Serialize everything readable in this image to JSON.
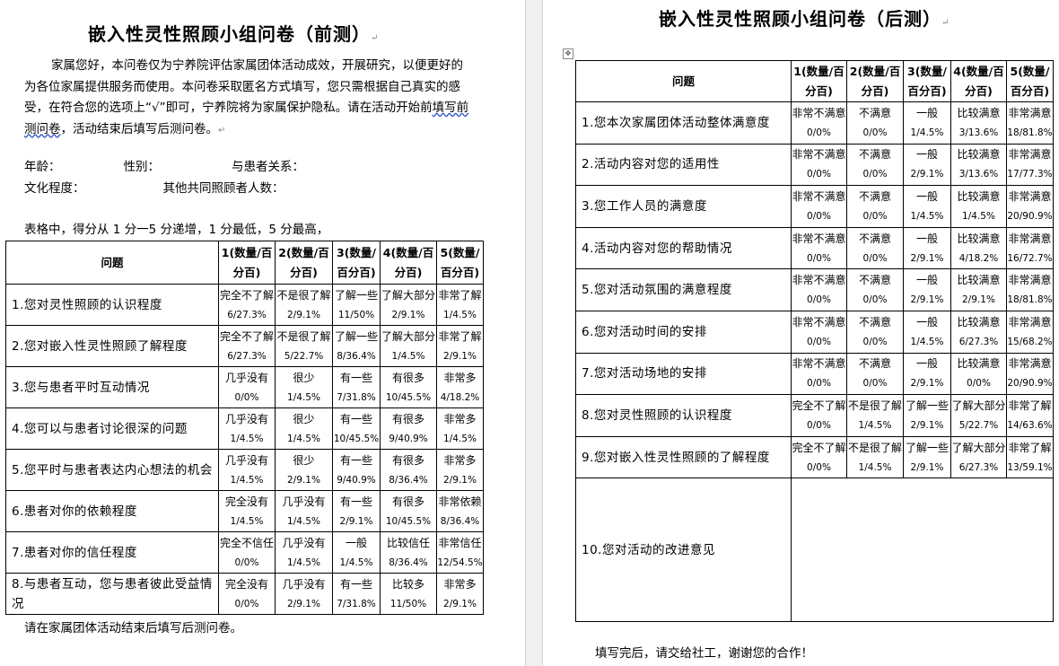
{
  "pre": {
    "title": "嵌入性灵性照顾小组问卷（前测）",
    "intro_before": "家属您好，本问卷仅为宁养院评估家属团体活动成效，开展研究，以便更好的为各位家属提供服务而使用。本问卷采取匿名方式填写，您只需根据自己真实的感受，在符合您的选项上“√”即可，宁养院将为家属保护隐私。请在活动开始前",
    "intro_underlined": "填写前测问卷",
    "intro_after": "，活动结束后填写后测问卷。",
    "fields_line1": [
      "年龄：",
      "性别：",
      "与患者关系："
    ],
    "fields_line2": [
      "文化程度：",
      "其他共同照顾者人数："
    ],
    "scale_note": "表格中，得分从 1 分一5 分递增，1 分最低，5 分最高，",
    "headers": [
      "问题",
      "1(数量/百分百)",
      "2(数量/百分百)",
      "3(数量/百分百)",
      "4(数量/百分百)",
      "5(数量/百分百)"
    ],
    "rows": [
      {
        "q": "1.您对灵性照顾的认识程度",
        "cells": [
          [
            "完全不了解",
            "6/27.3%"
          ],
          [
            "不是很了解",
            "2/9.1%"
          ],
          [
            "了解一些",
            "11/50%"
          ],
          [
            "了解大部分",
            "2/9.1%"
          ],
          [
            "非常了解",
            "1/4.5%"
          ]
        ]
      },
      {
        "q": "2.您对嵌入性灵性照顾了解程度",
        "cells": [
          [
            "完全不了解",
            "6/27.3%"
          ],
          [
            "不是很了解",
            "5/22.7%"
          ],
          [
            "了解一些",
            "8/36.4%"
          ],
          [
            "了解大部分",
            "1/4.5%"
          ],
          [
            "非常了解",
            "2/9.1%"
          ]
        ]
      },
      {
        "q": "3.您与患者平时互动情况",
        "cells": [
          [
            "几乎没有",
            "0/0%"
          ],
          [
            "很少",
            "1/4.5%"
          ],
          [
            "有一些",
            "7/31.8%"
          ],
          [
            "有很多",
            "10/45.5%"
          ],
          [
            "非常多",
            "4/18.2%"
          ]
        ]
      },
      {
        "q": "4.您可以与患者讨论很深的问题",
        "cells": [
          [
            "几乎没有",
            "1/4.5%"
          ],
          [
            "很少",
            "1/4.5%"
          ],
          [
            "有一些",
            "10/45.5%"
          ],
          [
            "有很多",
            "9/40.9%"
          ],
          [
            "非常多",
            "1/4.5%"
          ]
        ]
      },
      {
        "q": "5.您平时与患者表达内心想法的机会",
        "cells": [
          [
            "几乎没有",
            "1/4.5%"
          ],
          [
            "很少",
            "2/9.1%"
          ],
          [
            "有一些",
            "9/40.9%"
          ],
          [
            "有很多",
            "8/36.4%"
          ],
          [
            "非常多",
            "2/9.1%"
          ]
        ]
      },
      {
        "q": "6.患者对你的依赖程度",
        "cells": [
          [
            "完全没有",
            "1/4.5%"
          ],
          [
            "几乎没有",
            "1/4.5%"
          ],
          [
            "有一些",
            "2/9.1%"
          ],
          [
            "有很多",
            "10/45.5%"
          ],
          [
            "非常依赖",
            "8/36.4%"
          ]
        ]
      },
      {
        "q": "7.患者对你的信任程度",
        "cells": [
          [
            "完全不信任",
            "0/0%"
          ],
          [
            "几乎没有",
            "1/4.5%"
          ],
          [
            "一般",
            "1/4.5%"
          ],
          [
            "比较信任",
            "8/36.4%"
          ],
          [
            "非常信任",
            "12/54.5%"
          ]
        ]
      },
      {
        "q": "8.与患者互动，您与患者彼此受益情况",
        "cells": [
          [
            "完全没有",
            "0/0%"
          ],
          [
            "几乎没有",
            "2/9.1%"
          ],
          [
            "有一些",
            "7/31.8%"
          ],
          [
            "比较多",
            "11/50%"
          ],
          [
            "非常多",
            "2/9.1%"
          ]
        ]
      }
    ],
    "footer": "请在家属团体活动结束后填写后测问卷。"
  },
  "post": {
    "title": "嵌入性灵性照顾小组问卷（后测）",
    "headers": [
      "问题",
      "1(数量/百分百)",
      "2(数量/百分百)",
      "3(数量/百分百)",
      "4(数量/百分百)",
      "5(数量/百分百)"
    ],
    "rows": [
      {
        "q": "1.您本次家属团体活动整体满意度",
        "cells": [
          [
            "非常不满意",
            "0/0%"
          ],
          [
            "不满意",
            "0/0%"
          ],
          [
            "一般",
            "1/4.5%"
          ],
          [
            "比较满意",
            "3/13.6%"
          ],
          [
            "非常满意",
            "18/81.8%"
          ]
        ]
      },
      {
        "q": "2.活动内容对您的适用性",
        "cells": [
          [
            "非常不满意",
            "0/0%"
          ],
          [
            "不满意",
            "0/0%"
          ],
          [
            "一般",
            "2/9.1%"
          ],
          [
            "比较满意",
            "3/13.6%"
          ],
          [
            "非常满意",
            "17/77.3%"
          ]
        ]
      },
      {
        "q": "3.您工作人员的满意度",
        "cells": [
          [
            "非常不满意",
            "0/0%"
          ],
          [
            "不满意",
            "0/0%"
          ],
          [
            "一般",
            "1/4.5%"
          ],
          [
            "比较满意",
            "1/4.5%"
          ],
          [
            "非常满意",
            "20/90.9%"
          ]
        ]
      },
      {
        "q": "4.活动内容对您的帮助情况",
        "cells": [
          [
            "非常不满意",
            "0/0%"
          ],
          [
            "不满意",
            "0/0%"
          ],
          [
            "一般",
            "2/9.1%"
          ],
          [
            "比较满意",
            "4/18.2%"
          ],
          [
            "非常满意",
            "16/72.7%"
          ]
        ]
      },
      {
        "q": "5.您对活动氛围的满意程度",
        "cells": [
          [
            "非常不满意",
            "0/0%"
          ],
          [
            "不满意",
            "0/0%"
          ],
          [
            "一般",
            "2/9.1%"
          ],
          [
            "比较满意",
            "2/9.1%"
          ],
          [
            "非常满意",
            "18/81.8%"
          ]
        ]
      },
      {
        "q": "6.您对活动时间的安排",
        "cells": [
          [
            "非常不满意",
            "0/0%"
          ],
          [
            "不满意",
            "0/0%"
          ],
          [
            "一般",
            "1/4.5%"
          ],
          [
            "比较满意",
            "6/27.3%"
          ],
          [
            "非常满意",
            "15/68.2%"
          ]
        ]
      },
      {
        "q": "7.您对活动场地的安排",
        "cells": [
          [
            "非常不满意",
            "0/0%"
          ],
          [
            "不满意",
            "0/0%"
          ],
          [
            "一般",
            "2/9.1%"
          ],
          [
            "比较满意",
            "0/0%"
          ],
          [
            "非常满意",
            "20/90.9%"
          ]
        ]
      },
      {
        "q": "8.您对灵性照顾的认识程度",
        "cells": [
          [
            "完全不了解",
            "0/0%"
          ],
          [
            "不是很了解",
            "1/4.5%"
          ],
          [
            "了解一些",
            "2/9.1%"
          ],
          [
            "了解大部分",
            "5/22.7%"
          ],
          [
            "非常了解",
            "14/63.6%"
          ]
        ]
      },
      {
        "q": "9.您对嵌入性灵性照顾的了解程度",
        "cells": [
          [
            "完全不了解",
            "0/0%"
          ],
          [
            "不是很了解",
            "1/4.5%"
          ],
          [
            "了解一些",
            "2/9.1%"
          ],
          [
            "了解大部分",
            "6/27.3%"
          ],
          [
            "非常了解",
            "13/59.1%"
          ]
        ]
      }
    ],
    "improvement_question": "10.您对活动的改进意见",
    "footer": "填写完后，请交给社工，谢谢您的合作！"
  }
}
